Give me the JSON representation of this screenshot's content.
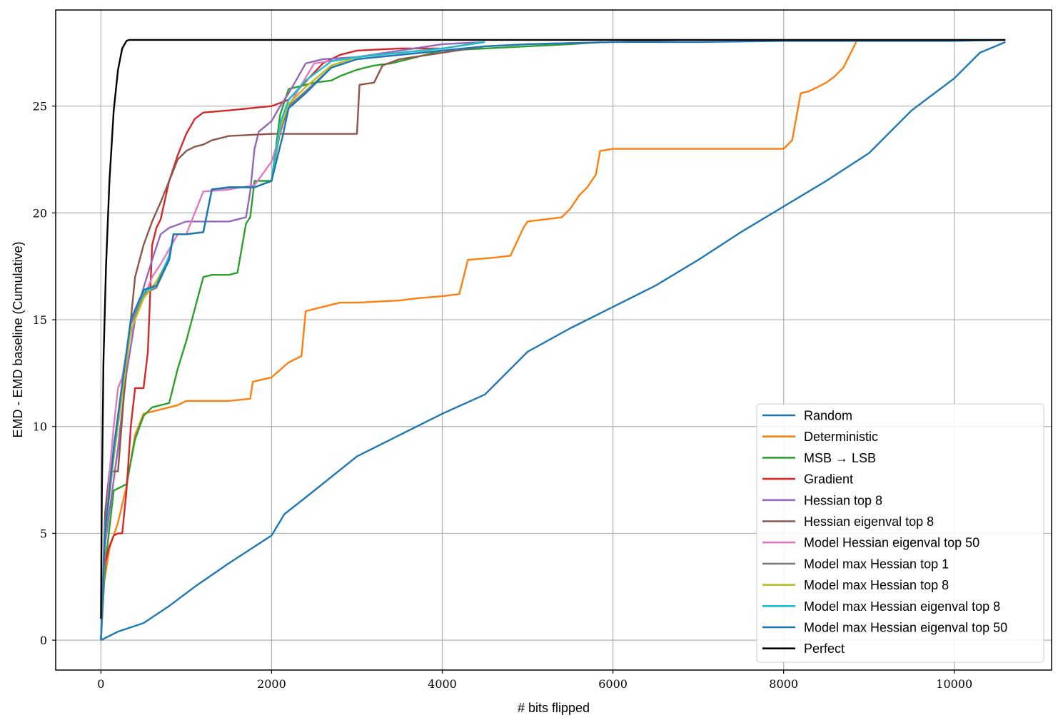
{
  "chart_data": {
    "type": "line",
    "title": "",
    "xlabel": "# bits flipped",
    "ylabel": "EMD - EMD baseline (Cumulative)",
    "xlim": [
      -530,
      11140
    ],
    "ylim": [
      -1.4,
      29.5
    ],
    "xticks": [
      0,
      2000,
      4000,
      6000,
      8000,
      10000
    ],
    "yticks": [
      0,
      5,
      10,
      15,
      20,
      25
    ],
    "grid": true,
    "legend_position": "lower-right",
    "series": [
      {
        "name": "Random",
        "color": "#1f77b4",
        "x": [
          0,
          200,
          500,
          800,
          1100,
          1500,
          2000,
          2150,
          2500,
          3000,
          3500,
          4000,
          4500,
          5000,
          5500,
          6000,
          6500,
          7000,
          7500,
          8000,
          8500,
          9000,
          9500,
          10000,
          10300,
          10600
        ],
        "y": [
          0,
          0.4,
          0.8,
          1.6,
          2.5,
          3.6,
          4.9,
          5.9,
          7.0,
          8.6,
          9.6,
          10.6,
          11.5,
          13.5,
          14.6,
          15.6,
          16.6,
          17.8,
          19.1,
          20.3,
          21.5,
          22.8,
          24.8,
          26.3,
          27.5,
          28.0
        ]
      },
      {
        "name": "Deterministic",
        "color": "#ff7f0e",
        "x": [
          0,
          30,
          100,
          200,
          300,
          400,
          500,
          600,
          700,
          900,
          1000,
          1200,
          1500,
          1750,
          1780,
          2000,
          2200,
          2350,
          2400,
          2500,
          2800,
          3000,
          3500,
          3700,
          4000,
          4200,
          4300,
          4600,
          4800,
          4950,
          5000,
          5200,
          5400,
          5500,
          5600,
          5700,
          5800,
          5850,
          6000,
          6500,
          7000,
          7500,
          8000,
          8100,
          8200,
          8300,
          8400,
          8500,
          8600,
          8700,
          8800,
          8850
        ],
        "y": [
          0,
          2.5,
          4.3,
          5.5,
          7.2,
          9.6,
          10.6,
          10.7,
          10.8,
          11.0,
          11.2,
          11.2,
          11.2,
          11.3,
          12.1,
          12.3,
          13.0,
          13.3,
          15.4,
          15.5,
          15.8,
          15.8,
          15.9,
          16.0,
          16.1,
          16.2,
          17.8,
          17.9,
          18.0,
          19.3,
          19.6,
          19.7,
          19.8,
          20.2,
          20.8,
          21.2,
          21.8,
          22.9,
          23.0,
          23.0,
          23.0,
          23.0,
          23.0,
          23.4,
          25.6,
          25.7,
          25.9,
          26.1,
          26.4,
          26.8,
          27.6,
          28.0
        ]
      },
      {
        "name": "MSB → LSB",
        "color": "#2ca02c",
        "x": [
          0,
          50,
          150,
          300,
          400,
          500,
          600,
          700,
          800,
          900,
          1000,
          1100,
          1200,
          1300,
          1500,
          1600,
          1700,
          1750,
          1800,
          2000,
          2100,
          2200,
          2500,
          2700,
          2800,
          3000,
          3200,
          3400,
          3600,
          4000,
          4500,
          5000,
          5500,
          5870
        ],
        "y": [
          0,
          3.5,
          7.0,
          7.3,
          9.4,
          10.5,
          10.9,
          11.0,
          11.1,
          12.7,
          14.0,
          15.5,
          17.0,
          17.1,
          17.1,
          17.2,
          19.5,
          19.8,
          21.5,
          21.5,
          24.6,
          25.8,
          26.1,
          26.2,
          26.4,
          26.7,
          26.9,
          27.0,
          27.2,
          27.6,
          27.7,
          27.8,
          27.9,
          28.0
        ]
      },
      {
        "name": "Gradient",
        "color": "#d62728",
        "x": [
          0,
          30,
          100,
          150,
          200,
          250,
          300,
          350,
          400,
          500,
          550,
          600,
          650,
          700,
          800,
          900,
          1000,
          1100,
          1200,
          1500,
          2000,
          2200,
          2600,
          2800,
          3000,
          3500,
          4000
        ],
        "y": [
          0,
          3.3,
          4.4,
          4.9,
          5.0,
          5.0,
          7.0,
          10.0,
          11.8,
          11.8,
          13.5,
          18.5,
          19.3,
          19.7,
          21.5,
          22.7,
          23.7,
          24.4,
          24.7,
          24.8,
          25.0,
          25.3,
          27.0,
          27.4,
          27.6,
          27.7,
          27.7
        ]
      },
      {
        "name": "Hessian top 8",
        "color": "#9467bd",
        "x": [
          0,
          50,
          200,
          300,
          400,
          500,
          600,
          700,
          800,
          1000,
          1200,
          1500,
          1700,
          1750,
          1800,
          1850,
          2000,
          2100,
          2200,
          2300,
          2400,
          2600,
          3000,
          3500,
          4000,
          4500
        ],
        "y": [
          0,
          4.5,
          9.0,
          12.5,
          15.0,
          16.5,
          17.8,
          19.0,
          19.3,
          19.6,
          19.6,
          19.6,
          19.8,
          21.0,
          23.0,
          23.8,
          24.3,
          25.0,
          25.6,
          26.3,
          27.0,
          27.2,
          27.3,
          27.6,
          27.9,
          28.0
        ]
      },
      {
        "name": "Hessian eigenval top 8",
        "color": "#8c564b",
        "x": [
          0,
          50,
          100,
          200,
          300,
          400,
          500,
          600,
          700,
          800,
          900,
          1000,
          1100,
          1200,
          1300,
          1500,
          2000,
          2500,
          3000,
          3030,
          3200,
          3300,
          3500,
          4000,
          4500
        ],
        "y": [
          0,
          6.0,
          7.9,
          7.9,
          13.0,
          17.0,
          18.5,
          19.6,
          20.5,
          21.5,
          22.5,
          22.9,
          23.1,
          23.2,
          23.4,
          23.6,
          23.7,
          23.7,
          23.7,
          26.0,
          26.1,
          26.9,
          27.2,
          27.5,
          27.8
        ]
      },
      {
        "name": "Model Hessian eigenval top 50",
        "color": "#e377c2",
        "x": [
          0,
          50,
          100,
          150,
          200,
          250,
          300,
          400,
          500,
          600,
          700,
          800,
          900,
          1000,
          1200,
          1500,
          1800,
          2000,
          2200,
          2500,
          3000,
          3500,
          4000,
          4500
        ],
        "y": [
          0,
          4.5,
          7.8,
          10.0,
          11.8,
          12.3,
          13.5,
          15.2,
          16.0,
          17.0,
          17.6,
          18.3,
          19.0,
          19.0,
          21.0,
          21.1,
          21.3,
          22.4,
          25.0,
          27.0,
          27.3,
          27.5,
          27.7,
          28.0
        ]
      },
      {
        "name": "Model max Hessian top 1",
        "color": "#7f7f7f",
        "x": [
          0,
          50,
          150,
          250,
          350,
          500,
          650,
          800,
          850,
          1000,
          1200,
          1300,
          1500,
          1800,
          2000,
          2100,
          2200,
          2400,
          2700,
          3000,
          3500,
          4000,
          4500,
          5000,
          6000,
          6760
        ],
        "y": [
          0,
          5.0,
          9.0,
          12.0,
          14.8,
          16.2,
          16.5,
          17.8,
          19.0,
          19.0,
          19.1,
          21.1,
          21.2,
          21.2,
          21.5,
          23.8,
          25.0,
          25.7,
          26.8,
          27.2,
          27.4,
          27.6,
          27.8,
          27.9,
          28.0,
          28.1
        ]
      },
      {
        "name": "Model max Hessian top 8",
        "color": "#bcbd22",
        "x": [
          0,
          50,
          150,
          250,
          350,
          500,
          650,
          800,
          850,
          1000,
          1200,
          1300,
          1500,
          1800,
          2000,
          2100,
          2200,
          2400,
          2700,
          3000,
          3500,
          4000,
          4500
        ],
        "y": [
          0,
          5.0,
          8.5,
          11.5,
          14.5,
          16.0,
          16.8,
          17.9,
          19.0,
          19.0,
          19.1,
          21.1,
          21.2,
          21.2,
          21.5,
          24.0,
          25.1,
          25.9,
          26.9,
          27.3,
          27.5,
          27.7,
          28.0
        ]
      },
      {
        "name": "Model max Hessian eigenval top 8",
        "color": "#17becf",
        "x": [
          0,
          50,
          150,
          250,
          350,
          500,
          650,
          800,
          850,
          1000,
          1200,
          1300,
          1500,
          1800,
          2000,
          2100,
          2200,
          2400,
          2700,
          3000,
          3500,
          4000,
          4500
        ],
        "y": [
          0,
          5.2,
          8.8,
          12.0,
          15.0,
          16.3,
          16.6,
          18.0,
          19.0,
          19.0,
          19.1,
          21.1,
          21.2,
          21.2,
          21.5,
          24.2,
          25.3,
          26.2,
          27.1,
          27.3,
          27.5,
          27.7,
          28.0
        ]
      },
      {
        "name": "Model max Hessian eigenval top 50",
        "color": "#1f77b4",
        "x": [
          0,
          50,
          150,
          250,
          350,
          500,
          650,
          800,
          850,
          1000,
          1200,
          1300,
          1500,
          1800,
          2000,
          2130,
          2200,
          2400,
          2700,
          3000,
          3500,
          4000,
          4500,
          5000,
          6000,
          7000,
          8000,
          9000,
          10000,
          10600
        ],
        "y": [
          0,
          5.0,
          9.0,
          12.0,
          15.0,
          16.4,
          16.6,
          17.8,
          19.0,
          19.0,
          19.1,
          21.1,
          21.2,
          21.2,
          21.5,
          23.6,
          24.9,
          25.6,
          26.8,
          27.2,
          27.4,
          27.6,
          27.8,
          27.9,
          28.0,
          28.0,
          28.05,
          28.05,
          28.05,
          28.1
        ]
      },
      {
        "name": "Perfect",
        "color": "#000000",
        "x": [
          0,
          10,
          30,
          60,
          100,
          150,
          200,
          250,
          300,
          330,
          400,
          1000,
          3000,
          6000,
          9000,
          10600
        ],
        "y": [
          1.0,
          6.5,
          13.0,
          17.5,
          21.5,
          24.8,
          26.7,
          27.7,
          28.05,
          28.1,
          28.1,
          28.1,
          28.1,
          28.1,
          28.1,
          28.1
        ]
      }
    ]
  }
}
